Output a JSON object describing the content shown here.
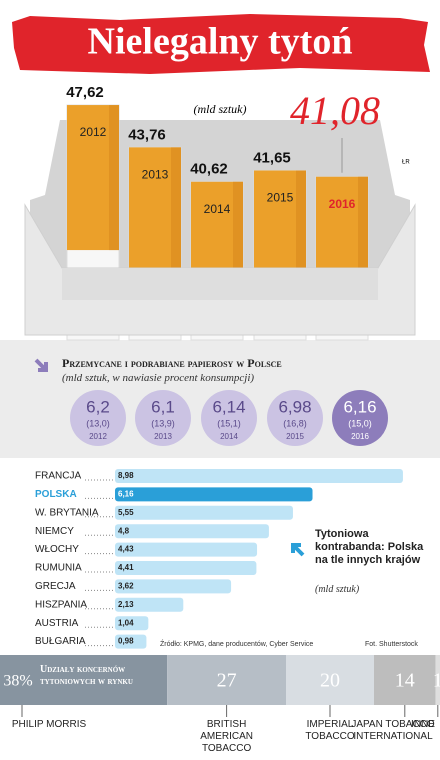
{
  "chart_data": [
    {
      "type": "cigarettes",
      "title": "Nielegalny tytoń",
      "subtitle": "(mld sztuk)",
      "note": "ŁR",
      "categories": [
        "2012",
        "2013",
        "2014",
        "2015",
        "2016"
      ],
      "values": [
        47.62,
        43.76,
        40.62,
        41.65,
        41.08
      ],
      "value_labels": [
        "47,62",
        "43,76",
        "40,62",
        "41,65",
        "41,08"
      ],
      "color": "#eba02a",
      "highlight_color": "#e0242b",
      "ylim": [
        28,
        50
      ]
    },
    {
      "type": "circles",
      "title": "Przemycane i podrabiane papierosy w Polsce",
      "subtitle": "(mld sztuk, w nawiasie procent konsumpcji)",
      "categories": [
        "2012",
        "2013",
        "2014",
        "2015",
        "2016"
      ],
      "values": [
        6.2,
        6.1,
        6.14,
        6.98,
        6.16
      ],
      "value_labels": [
        "6,2",
        "6,1",
        "6,14",
        "6,98",
        "6,16"
      ],
      "shares": [
        13.0,
        13.9,
        15.1,
        16.8,
        15.0
      ],
      "share_labels": [
        "(13,0)",
        "(13,9)",
        "(15,1)",
        "(16,8)",
        "(15,0)"
      ],
      "colors": [
        "#cbc3e3",
        "#cbc3e3",
        "#cbc3e3",
        "#cbc3e3",
        "#8d7dbb"
      ]
    },
    {
      "type": "hbar",
      "title": "Tytoniowa kontrabanda: Polska na tle innych krajów",
      "subtitle": "(mld sztuk)",
      "categories": [
        "FRANCJA",
        "POLSKA",
        "W. BRYTANIA",
        "NIEMCY",
        "WŁOCHY",
        "RUMUNIA",
        "GRECJA",
        "HISZPANIA",
        "AUSTRIA",
        "BUŁGARIA"
      ],
      "values": [
        8.98,
        6.16,
        5.55,
        4.8,
        4.43,
        4.41,
        3.62,
        2.13,
        1.04,
        0.98
      ],
      "value_labels": [
        "8,98",
        "6,16",
        "5,55",
        "4,8",
        "4,43",
        "4,41",
        "3,62",
        "2,13",
        "1,04",
        "0,98"
      ],
      "colors": [
        "#bfe4f6",
        "#2a9fd8",
        "#bfe4f6",
        "#bfe4f6",
        "#bfe4f6",
        "#bfe4f6",
        "#bfe4f6",
        "#bfe4f6",
        "#bfe4f6",
        "#bfe4f6"
      ],
      "xlim": [
        0,
        9.2
      ],
      "source": "Źródło: KPMG, dane producentów, Cyber Service",
      "photo_credit": "Fot. Shutterstock"
    },
    {
      "type": "stacked",
      "title": "Udziały koncernów tytoniowych w rynku",
      "categories": [
        "PHILIP MORRIS",
        "BRITISH AMERICAN TOBACCO",
        "IMPERIAL TOBACCO",
        "JAPAN TOBACCO INTERNATIONAL",
        "INNE"
      ],
      "values": [
        38,
        27,
        20,
        14,
        1
      ],
      "value_labels": [
        "38%",
        "27",
        "20",
        "14",
        "1"
      ],
      "colors": [
        "#8794a0",
        "#b6bec6",
        "#d8dde2",
        "#bdbdbd",
        "#dedede"
      ],
      "xlim": [
        0,
        100
      ]
    }
  ]
}
